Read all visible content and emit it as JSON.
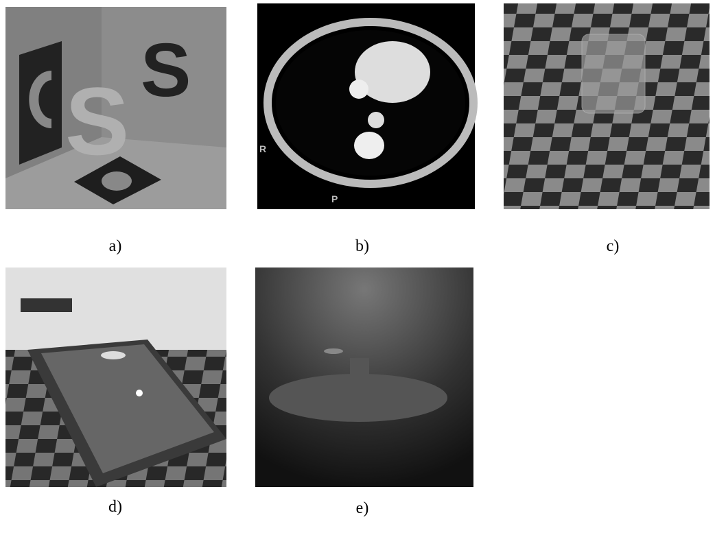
{
  "figure": {
    "panels": [
      {
        "label": "a)"
      },
      {
        "label": "b)",
        "image_text": [
          "R",
          "P"
        ]
      },
      {
        "label": "c)"
      },
      {
        "label": "d)"
      },
      {
        "label": "e)"
      }
    ]
  }
}
